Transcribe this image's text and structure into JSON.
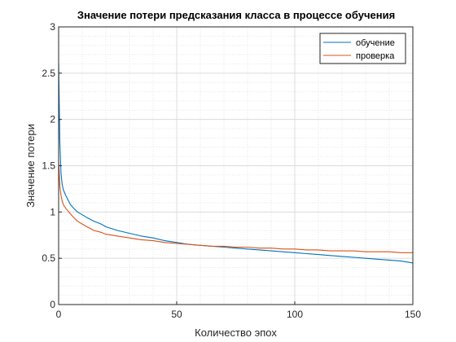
{
  "chart_data": {
    "type": "line",
    "title": "Значение потери предсказания класса в процессе обучения",
    "xlabel": "Количество эпох",
    "ylabel": "Значение потери",
    "xlim": [
      0,
      150
    ],
    "ylim": [
      0,
      3
    ],
    "xticks": [
      "0",
      "50",
      "100",
      "150"
    ],
    "yticks": [
      "0",
      "0.5",
      "1",
      "1.5",
      "2",
      "2.5",
      "3"
    ],
    "grid": "major and minor (dotted)",
    "legend_position": "top-right",
    "series": [
      {
        "name": "обучение",
        "color": "#0072bd",
        "x": [
          0,
          0.5,
          1,
          1.5,
          2,
          3,
          4,
          5,
          6,
          8,
          10,
          12,
          15,
          18,
          20,
          25,
          30,
          35,
          40,
          45,
          50,
          55,
          60,
          65,
          70,
          75,
          80,
          85,
          90,
          95,
          100,
          105,
          110,
          115,
          120,
          125,
          130,
          135,
          140,
          145,
          150
        ],
        "y": [
          2.6,
          1.75,
          1.42,
          1.3,
          1.24,
          1.18,
          1.13,
          1.08,
          1.05,
          1.0,
          0.97,
          0.94,
          0.9,
          0.87,
          0.84,
          0.8,
          0.77,
          0.74,
          0.72,
          0.69,
          0.67,
          0.65,
          0.64,
          0.63,
          0.62,
          0.61,
          0.6,
          0.59,
          0.58,
          0.57,
          0.56,
          0.55,
          0.54,
          0.53,
          0.52,
          0.51,
          0.5,
          0.49,
          0.48,
          0.47,
          0.45
        ]
      },
      {
        "name": "проверка",
        "color": "#d95319",
        "x": [
          0,
          0.5,
          1,
          1.5,
          2,
          3,
          4,
          5,
          6,
          8,
          10,
          12,
          15,
          18,
          20,
          25,
          30,
          35,
          40,
          45,
          50,
          55,
          60,
          65,
          70,
          75,
          80,
          85,
          90,
          95,
          100,
          105,
          110,
          115,
          120,
          125,
          130,
          135,
          140,
          145,
          150
        ],
        "y": [
          1.55,
          1.28,
          1.18,
          1.12,
          1.08,
          1.04,
          1.01,
          0.98,
          0.95,
          0.9,
          0.87,
          0.84,
          0.8,
          0.78,
          0.76,
          0.74,
          0.72,
          0.7,
          0.69,
          0.67,
          0.66,
          0.65,
          0.64,
          0.63,
          0.63,
          0.62,
          0.62,
          0.61,
          0.61,
          0.6,
          0.6,
          0.59,
          0.59,
          0.58,
          0.58,
          0.58,
          0.57,
          0.57,
          0.57,
          0.56,
          0.56
        ]
      }
    ]
  }
}
